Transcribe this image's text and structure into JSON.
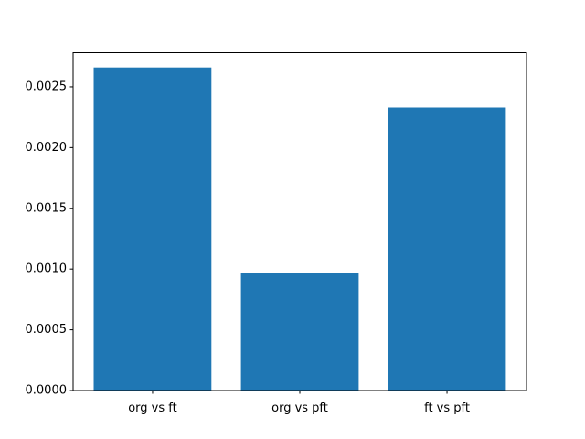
{
  "chart_data": {
    "type": "bar",
    "categories": [
      "org vs ft",
      "org vs pft",
      "ft vs pft"
    ],
    "values": [
      0.00266,
      0.00097,
      0.00233
    ],
    "title": "",
    "xlabel": "",
    "ylabel": "",
    "ylim": [
      0.0,
      0.002782
    ],
    "yticks": [
      0.0,
      0.0005,
      0.001,
      0.0015,
      0.002,
      0.0025
    ],
    "ytick_labels": [
      "0.0000",
      "0.0005",
      "0.0010",
      "0.0015",
      "0.0020",
      "0.0025"
    ],
    "grid": false,
    "legend": null,
    "bar_color": "#1f77b4"
  },
  "colors": {
    "background": "#ffffff",
    "bar": "#1f77b4",
    "spine": "#000000",
    "tick_text": "#000000"
  }
}
